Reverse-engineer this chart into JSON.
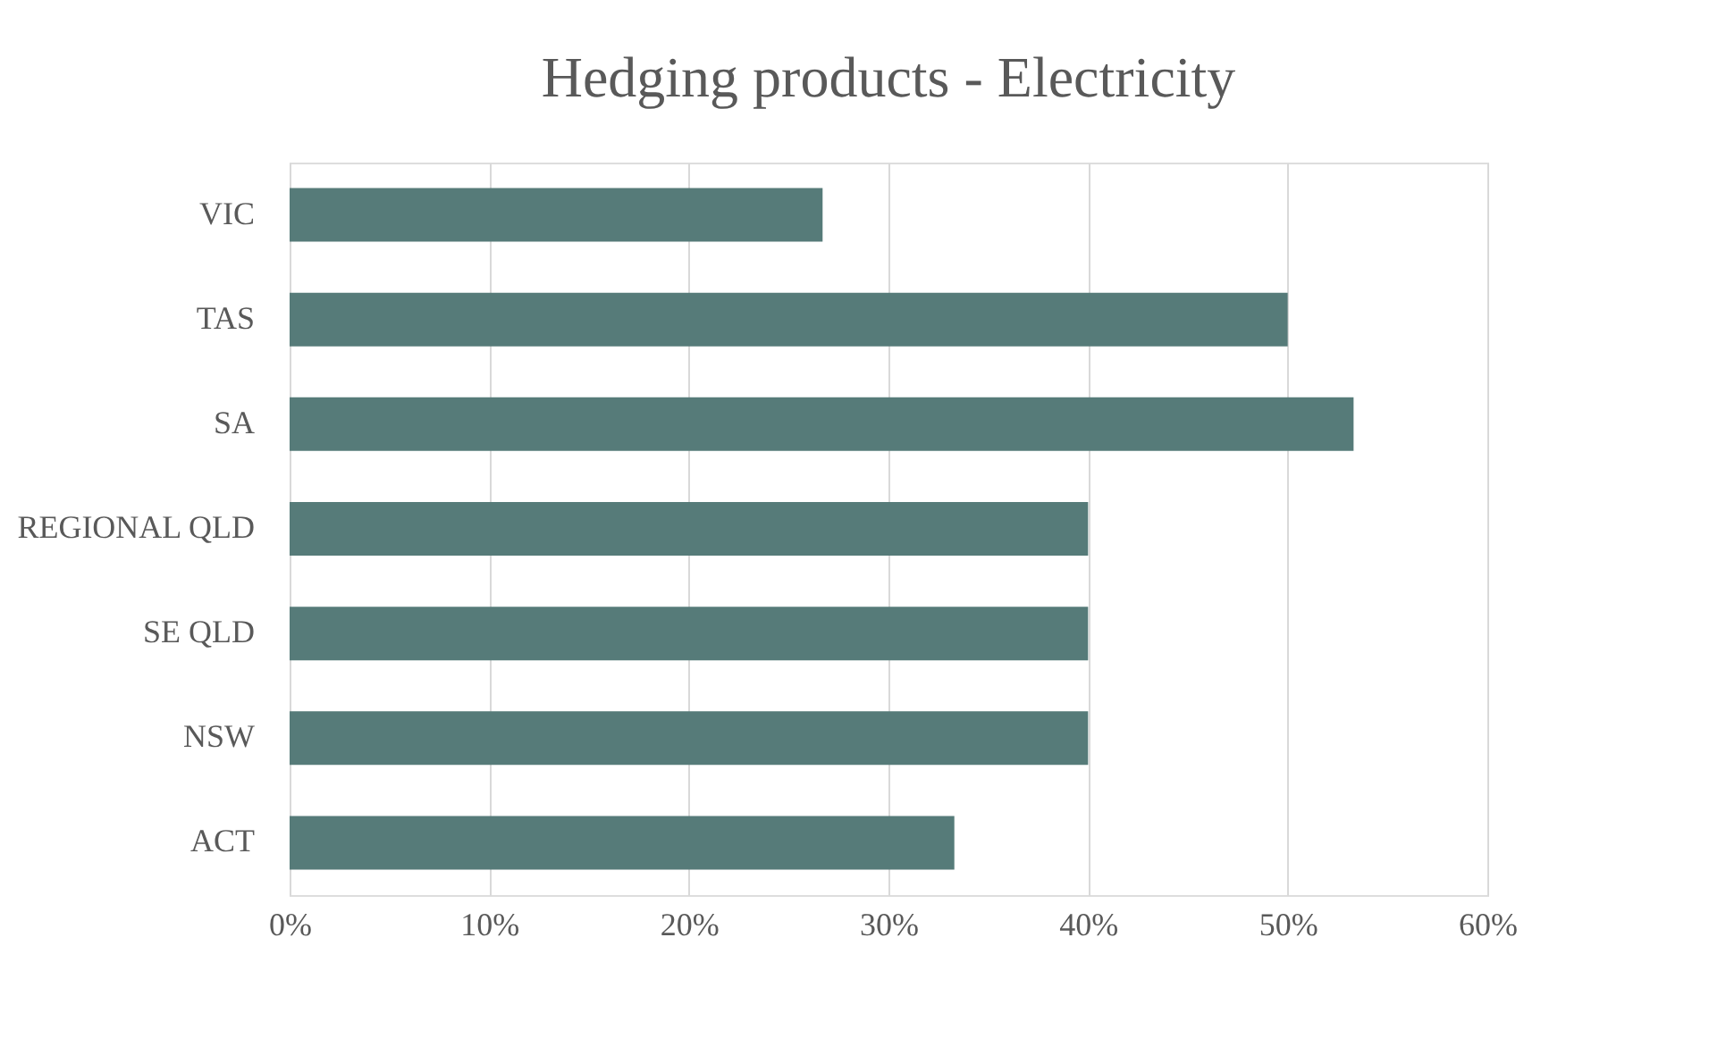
{
  "chart_data": {
    "type": "bar",
    "orientation": "horizontal",
    "title": "Hedging products - Electricity",
    "categories": [
      "VIC",
      "TAS",
      "SA",
      "REGIONAL QLD",
      "SE QLD",
      "NSW",
      "ACT"
    ],
    "values": [
      26.7,
      50,
      53.3,
      40,
      40,
      40,
      33.3
    ],
    "color": "#567b79",
    "xlim": [
      0,
      60
    ],
    "xticks": [
      {
        "value": 0,
        "label": "0%"
      },
      {
        "value": 10,
        "label": "10%"
      },
      {
        "value": 20,
        "label": "20%"
      },
      {
        "value": 30,
        "label": "30%"
      },
      {
        "value": 40,
        "label": "40%"
      },
      {
        "value": 50,
        "label": "50%"
      },
      {
        "value": 60,
        "label": "60%"
      }
    ],
    "grid": "x"
  }
}
